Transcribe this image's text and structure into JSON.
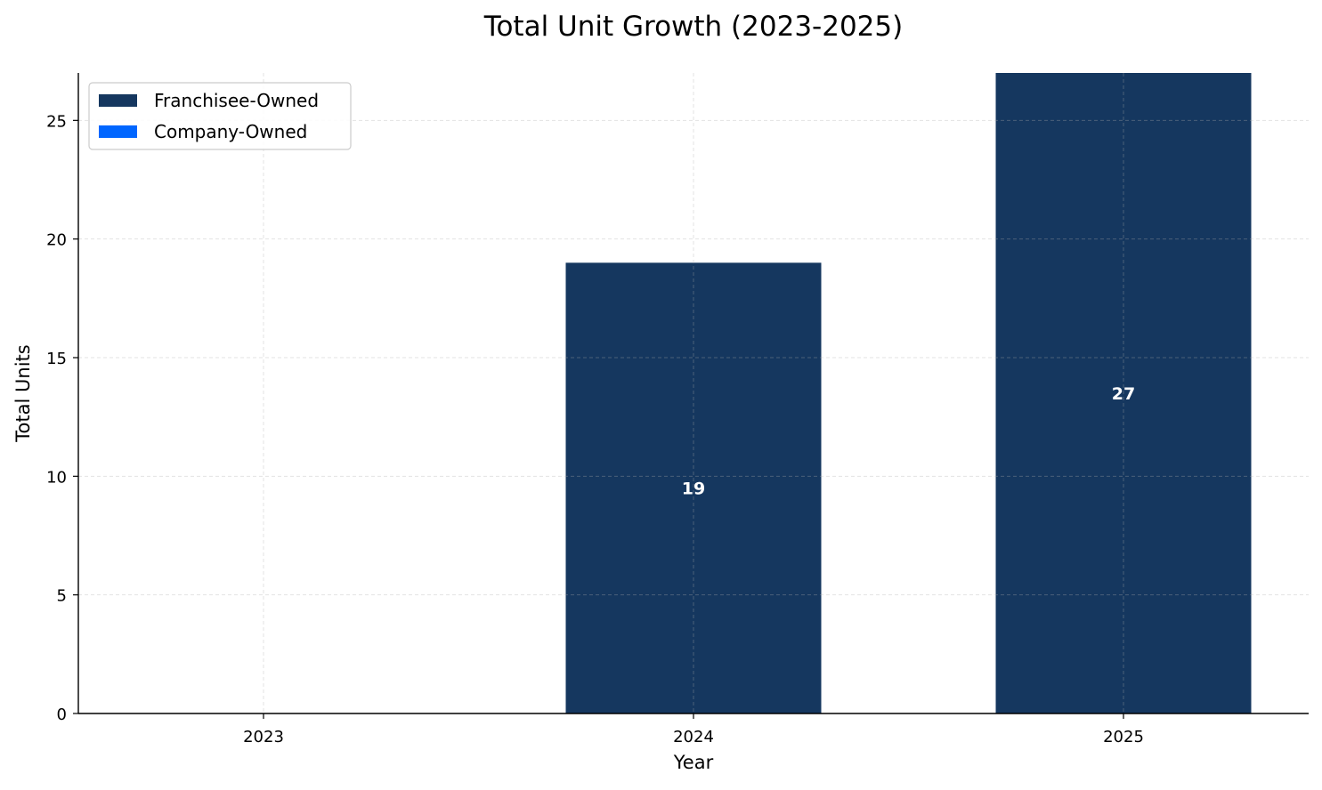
{
  "chart_data": {
    "type": "bar",
    "stacked": true,
    "title": "Total Unit Growth (2023-2025)",
    "xlabel": "Year",
    "ylabel": "Total Units",
    "categories": [
      "2023",
      "2024",
      "2025"
    ],
    "series": [
      {
        "name": "Franchisee-Owned",
        "values": [
          0,
          19,
          27
        ],
        "color": "#15375f"
      },
      {
        "name": "Company-Owned",
        "values": [
          0,
          0,
          0
        ],
        "color": "#0066ff"
      }
    ],
    "data_labels": [
      "",
      "19",
      "27"
    ],
    "ylim": [
      0,
      27
    ],
    "yticks": [
      0,
      5,
      10,
      15,
      20,
      25
    ],
    "grid": true,
    "legend_position": "top-left"
  }
}
